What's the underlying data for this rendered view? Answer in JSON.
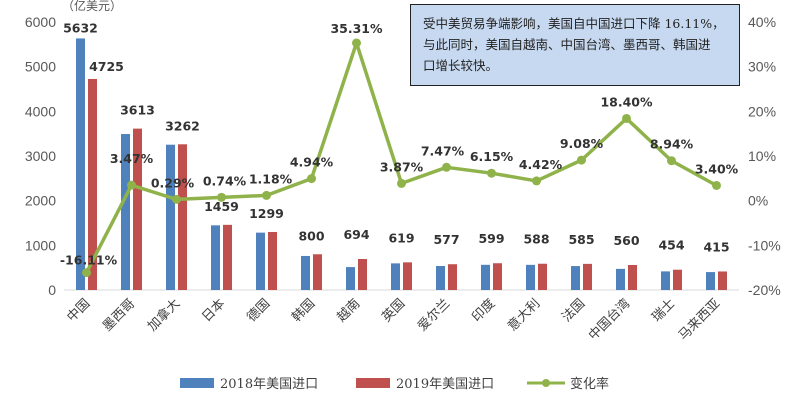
{
  "chart_data": {
    "type": "bar",
    "unit_label": "（亿美元）",
    "categories": [
      "中国",
      "墨西哥",
      "加拿大",
      "日本",
      "德国",
      "韩国",
      "越南",
      "英国",
      "爱尔兰",
      "印度",
      "意大利",
      "法国",
      "中国台湾",
      "瑞士",
      "马来西亚"
    ],
    "series": [
      {
        "name": "2018年美国进口",
        "type": "bar",
        "color": "#4f81bd",
        "values": [
          5632,
          3492,
          3253,
          1448,
          1284,
          762,
          513,
          596,
          537,
          564,
          563,
          536,
          473,
          417,
          401
        ]
      },
      {
        "name": "2019年美国进口",
        "type": "bar",
        "color": "#c0504d",
        "values": [
          4725,
          3613,
          3262,
          1459,
          1299,
          800,
          694,
          619,
          577,
          599,
          588,
          585,
          560,
          454,
          415
        ]
      },
      {
        "name": "变化率",
        "type": "line",
        "axis": "right",
        "color": "#8fb34a",
        "values": [
          -16.11,
          3.47,
          0.29,
          0.74,
          1.18,
          4.94,
          35.31,
          3.87,
          7.47,
          6.15,
          4.42,
          9.08,
          18.4,
          8.94,
          3.4
        ]
      }
    ],
    "bar_labels": [
      "5632",
      "4725",
      "3613",
      "3262",
      "1459",
      "1299",
      "800",
      "694",
      "619",
      "577",
      "599",
      "588",
      "585",
      "560",
      "454",
      "415"
    ],
    "line_labels": [
      "-16.11%",
      "3.47%",
      "0.29%",
      "0.74%",
      "1.18%",
      "4.94%",
      "35.31%",
      "3.87%",
      "7.47%",
      "6.15%",
      "4.42%",
      "9.08%",
      "18.40%",
      "8.94%",
      "3.40%"
    ],
    "y_left": {
      "range": [
        0,
        6000
      ],
      "ticks": [
        "0",
        "1000",
        "2000",
        "3000",
        "4000",
        "5000",
        "6000"
      ]
    },
    "y_right": {
      "range": [
        -20,
        40
      ],
      "ticks": [
        "-20%",
        "-10%",
        "0%",
        "10%",
        "20%",
        "30%",
        "40%"
      ]
    },
    "highlight_color": "#c00000",
    "legend_position": "bottom",
    "annotation": [
      "受中美贸易争端影响，美国自中国进口下降 16.11%，",
      "与此同时，美国自越南、中国台湾、墨西哥、韩国进",
      "口增长较快。"
    ]
  }
}
